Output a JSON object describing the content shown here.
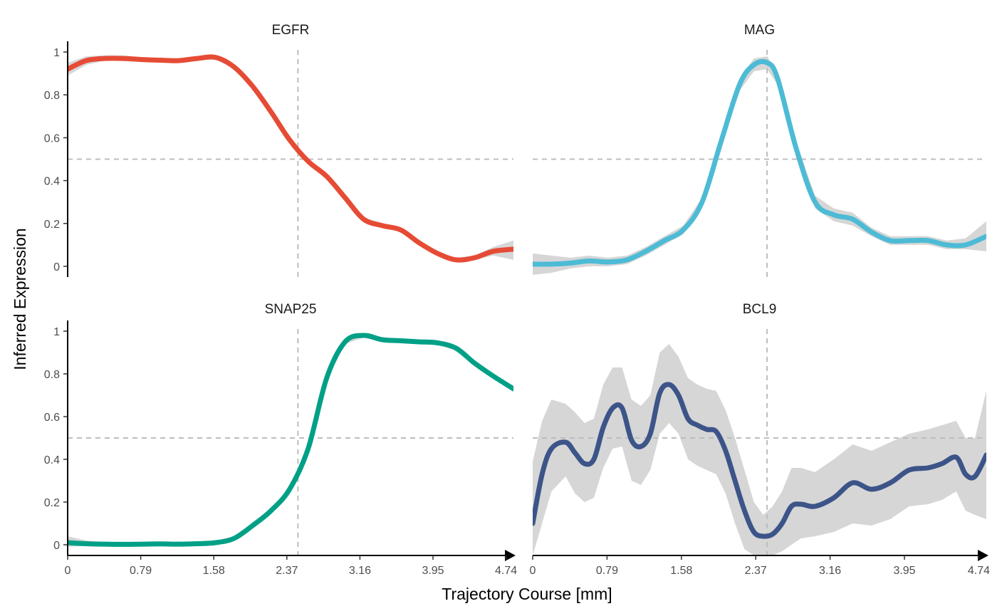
{
  "chart_data": {
    "type": "line",
    "xlabel": "Trajectory Course [mm]",
    "ylabel": "Inferred Expression",
    "xlim": [
      0,
      4.82
    ],
    "ylim": [
      -0.05,
      1.05
    ],
    "x_ticks": [
      0,
      0.79,
      1.58,
      2.37,
      3.16,
      3.95,
      4.74
    ],
    "x_tick_labels": [
      "0",
      "0.79",
      "1.58",
      "2.37",
      "3.16",
      "3.95",
      "4.74"
    ],
    "y_ticks": [
      0,
      0.2,
      0.4,
      0.6,
      0.8,
      1
    ],
    "y_tick_labels": [
      "0",
      "0.2",
      "0.4",
      "0.6",
      "0.8",
      "1"
    ],
    "reference_lines": {
      "x": 2.49,
      "y": 0.5
    },
    "grid": false,
    "ribbon_color": "#d6d6d6",
    "reference_line_color": "#bdbdbd",
    "panels": [
      {
        "title": "EGFR",
        "color": "#e64b35",
        "x": [
          0,
          0.2,
          0.4,
          0.6,
          0.8,
          1.0,
          1.2,
          1.4,
          1.6,
          1.8,
          2.0,
          2.2,
          2.4,
          2.6,
          2.8,
          3.0,
          3.2,
          3.4,
          3.6,
          3.8,
          4.0,
          4.2,
          4.4,
          4.6,
          4.82
        ],
        "y": [
          0.92,
          0.96,
          0.97,
          0.97,
          0.965,
          0.962,
          0.96,
          0.97,
          0.975,
          0.93,
          0.84,
          0.72,
          0.59,
          0.49,
          0.42,
          0.32,
          0.22,
          0.19,
          0.17,
          0.11,
          0.06,
          0.03,
          0.04,
          0.07,
          0.08
        ],
        "lower": [
          0.89,
          0.94,
          0.96,
          0.96,
          0.955,
          0.952,
          0.95,
          0.96,
          0.965,
          0.92,
          0.83,
          0.71,
          0.58,
          0.48,
          0.41,
          0.31,
          0.21,
          0.18,
          0.16,
          0.1,
          0.05,
          0.02,
          0.03,
          0.05,
          0.03
        ],
        "upper": [
          0.95,
          0.98,
          0.985,
          0.985,
          0.975,
          0.972,
          0.97,
          0.98,
          0.985,
          0.94,
          0.85,
          0.73,
          0.6,
          0.5,
          0.43,
          0.33,
          0.23,
          0.2,
          0.18,
          0.12,
          0.07,
          0.04,
          0.05,
          0.09,
          0.12
        ]
      },
      {
        "title": "MAG",
        "color": "#4dbbd5",
        "x": [
          0,
          0.2,
          0.4,
          0.6,
          0.8,
          1.0,
          1.2,
          1.4,
          1.6,
          1.8,
          2.0,
          2.2,
          2.35,
          2.49,
          2.6,
          2.8,
          3.0,
          3.2,
          3.4,
          3.6,
          3.8,
          4.0,
          4.2,
          4.4,
          4.6,
          4.82
        ],
        "y": [
          0.01,
          0.01,
          0.015,
          0.025,
          0.02,
          0.03,
          0.07,
          0.12,
          0.17,
          0.3,
          0.58,
          0.85,
          0.94,
          0.95,
          0.88,
          0.55,
          0.3,
          0.24,
          0.22,
          0.16,
          0.12,
          0.12,
          0.12,
          0.1,
          0.1,
          0.14
        ],
        "lower": [
          -0.04,
          -0.03,
          -0.01,
          0.0,
          0.0,
          0.01,
          0.05,
          0.1,
          0.15,
          0.28,
          0.56,
          0.82,
          0.91,
          0.92,
          0.85,
          0.52,
          0.27,
          0.21,
          0.19,
          0.14,
          0.1,
          0.1,
          0.1,
          0.08,
          0.08,
          0.07
        ],
        "upper": [
          0.06,
          0.05,
          0.04,
          0.05,
          0.04,
          0.05,
          0.09,
          0.14,
          0.19,
          0.32,
          0.6,
          0.88,
          0.97,
          0.98,
          0.91,
          0.58,
          0.33,
          0.27,
          0.25,
          0.18,
          0.14,
          0.14,
          0.14,
          0.12,
          0.13,
          0.21
        ]
      },
      {
        "title": "SNAP25",
        "color": "#00a087",
        "x": [
          0,
          0.2,
          0.4,
          0.6,
          0.8,
          1.0,
          1.2,
          1.4,
          1.6,
          1.8,
          2.0,
          2.2,
          2.4,
          2.6,
          2.8,
          3.0,
          3.2,
          3.4,
          3.6,
          3.8,
          4.0,
          4.2,
          4.4,
          4.6,
          4.82
        ],
        "y": [
          0.01,
          0.005,
          0.003,
          0.002,
          0.003,
          0.004,
          0.003,
          0.005,
          0.01,
          0.03,
          0.09,
          0.16,
          0.26,
          0.45,
          0.78,
          0.95,
          0.98,
          0.96,
          0.955,
          0.95,
          0.945,
          0.92,
          0.85,
          0.79,
          0.73
        ],
        "lower": [
          -0.01,
          -0.005,
          -0.005,
          -0.005,
          -0.004,
          -0.003,
          -0.004,
          -0.002,
          0.003,
          0.02,
          0.08,
          0.15,
          0.25,
          0.44,
          0.77,
          0.94,
          0.97,
          0.95,
          0.945,
          0.94,
          0.935,
          0.91,
          0.84,
          0.78,
          0.72
        ],
        "upper": [
          0.04,
          0.02,
          0.012,
          0.01,
          0.01,
          0.012,
          0.01,
          0.012,
          0.02,
          0.04,
          0.1,
          0.17,
          0.27,
          0.46,
          0.79,
          0.96,
          0.99,
          0.97,
          0.965,
          0.96,
          0.955,
          0.93,
          0.86,
          0.8,
          0.74
        ]
      },
      {
        "title": "BCL9",
        "color": "#3c5488",
        "x": [
          0,
          0.1,
          0.2,
          0.35,
          0.45,
          0.55,
          0.65,
          0.75,
          0.85,
          0.95,
          1.05,
          1.15,
          1.25,
          1.35,
          1.45,
          1.55,
          1.65,
          1.75,
          1.85,
          1.95,
          2.05,
          2.15,
          2.25,
          2.35,
          2.45,
          2.55,
          2.65,
          2.75,
          2.85,
          3.0,
          3.2,
          3.4,
          3.6,
          3.8,
          4.0,
          4.2,
          4.35,
          4.5,
          4.6,
          4.7,
          4.82
        ],
        "y": [
          0.1,
          0.33,
          0.45,
          0.48,
          0.43,
          0.38,
          0.4,
          0.55,
          0.64,
          0.64,
          0.49,
          0.46,
          0.52,
          0.71,
          0.75,
          0.7,
          0.59,
          0.56,
          0.54,
          0.53,
          0.44,
          0.3,
          0.16,
          0.06,
          0.04,
          0.05,
          0.1,
          0.18,
          0.19,
          0.18,
          0.22,
          0.29,
          0.26,
          0.29,
          0.35,
          0.36,
          0.38,
          0.41,
          0.33,
          0.32,
          0.42
        ],
        "lower": [
          -0.05,
          0.1,
          0.25,
          0.32,
          0.24,
          0.2,
          0.22,
          0.36,
          0.45,
          0.46,
          0.3,
          0.28,
          0.35,
          0.52,
          0.57,
          0.52,
          0.4,
          0.37,
          0.35,
          0.33,
          0.24,
          0.1,
          -0.02,
          -0.05,
          -0.05,
          -0.05,
          -0.03,
          0.0,
          0.03,
          0.04,
          0.06,
          0.1,
          0.09,
          0.12,
          0.18,
          0.19,
          0.21,
          0.25,
          0.16,
          0.14,
          0.12
        ],
        "upper": [
          0.39,
          0.58,
          0.68,
          0.66,
          0.62,
          0.57,
          0.59,
          0.75,
          0.83,
          0.83,
          0.68,
          0.65,
          0.7,
          0.9,
          0.94,
          0.88,
          0.78,
          0.75,
          0.73,
          0.72,
          0.63,
          0.5,
          0.35,
          0.2,
          0.14,
          0.18,
          0.25,
          0.36,
          0.36,
          0.34,
          0.4,
          0.47,
          0.44,
          0.48,
          0.52,
          0.54,
          0.56,
          0.58,
          0.5,
          0.5,
          0.72
        ]
      }
    ]
  }
}
